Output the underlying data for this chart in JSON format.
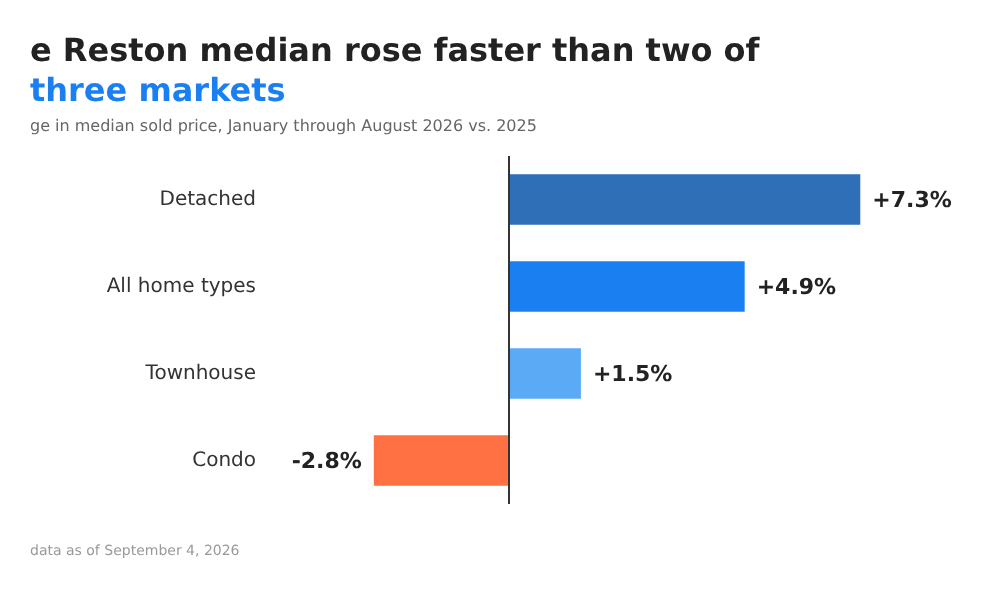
{
  "chart_data": {
    "type": "bar",
    "orientation": "horizontal",
    "title": "e Reston median rose faster than two of\nthree markets",
    "subtitle": "ge in median sold price, January through August 2026 vs. 2025",
    "categories": [
      "Detached",
      "All home types",
      "Townhouse",
      "Condo"
    ],
    "values": [
      7.3,
      4.9,
      1.5,
      -2.8
    ],
    "colors": [
      "#2f6fb8",
      "#1a80f2",
      "#5aaaf6",
      "#ff7043"
    ],
    "value_labels": [
      "+7.3%",
      "+4.9%",
      "+1.5%",
      "-2.8%"
    ],
    "ref_lines": [
      {
        "axis": "x",
        "value": 0,
        "color": "#333333"
      }
    ],
    "annotations": [
      "data as of September 4, 2026"
    ],
    "grid": false
  }
}
